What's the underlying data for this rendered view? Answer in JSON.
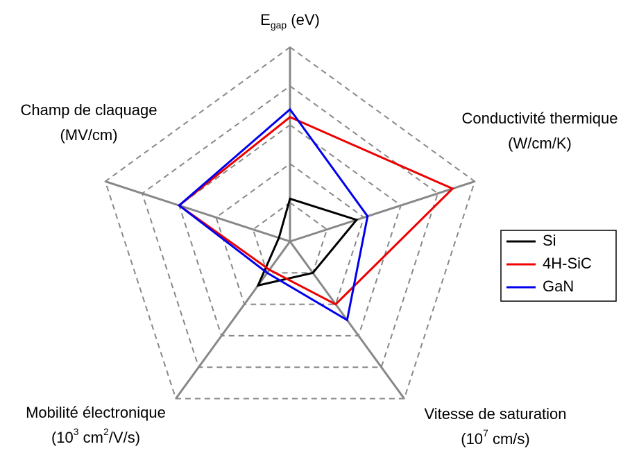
{
  "chart_data": {
    "type": "radar",
    "categories": [
      [
        [
          "E",
          {
            "sub": "gap"
          },
          " (eV)"
        ]
      ],
      [
        [
          "Conductivité thermique"
        ],
        [
          "(W/cm/K)"
        ]
      ],
      [
        [
          "Vitesse de saturation"
        ],
        [
          "(10",
          {
            "sup": "7"
          },
          " cm/s)"
        ]
      ],
      [
        [
          "Mobilité électronique"
        ],
        [
          "(10",
          {
            "sup": "3"
          },
          " cm",
          {
            "sup": "2"
          },
          "/V/s)"
        ]
      ],
      [
        [
          "Champ de claquage"
        ],
        [
          "(MV/cm)"
        ]
      ]
    ],
    "series": [
      {
        "name": "Si",
        "color": "#000000",
        "values": [
          1.1,
          1.8,
          1.0,
          1.4,
          0.3
        ]
      },
      {
        "name": "4H-SiC",
        "color": "#ee0000",
        "values": [
          3.2,
          4.4,
          2.0,
          0.9,
          3.0
        ]
      },
      {
        "name": "GaN",
        "color": "#0000ee",
        "values": [
          3.4,
          2.1,
          2.5,
          1.0,
          3.0
        ]
      }
    ],
    "ylim": [
      0,
      5
    ],
    "yticks": [
      1,
      2,
      3,
      4,
      5
    ],
    "grid": true,
    "legend": "right"
  }
}
